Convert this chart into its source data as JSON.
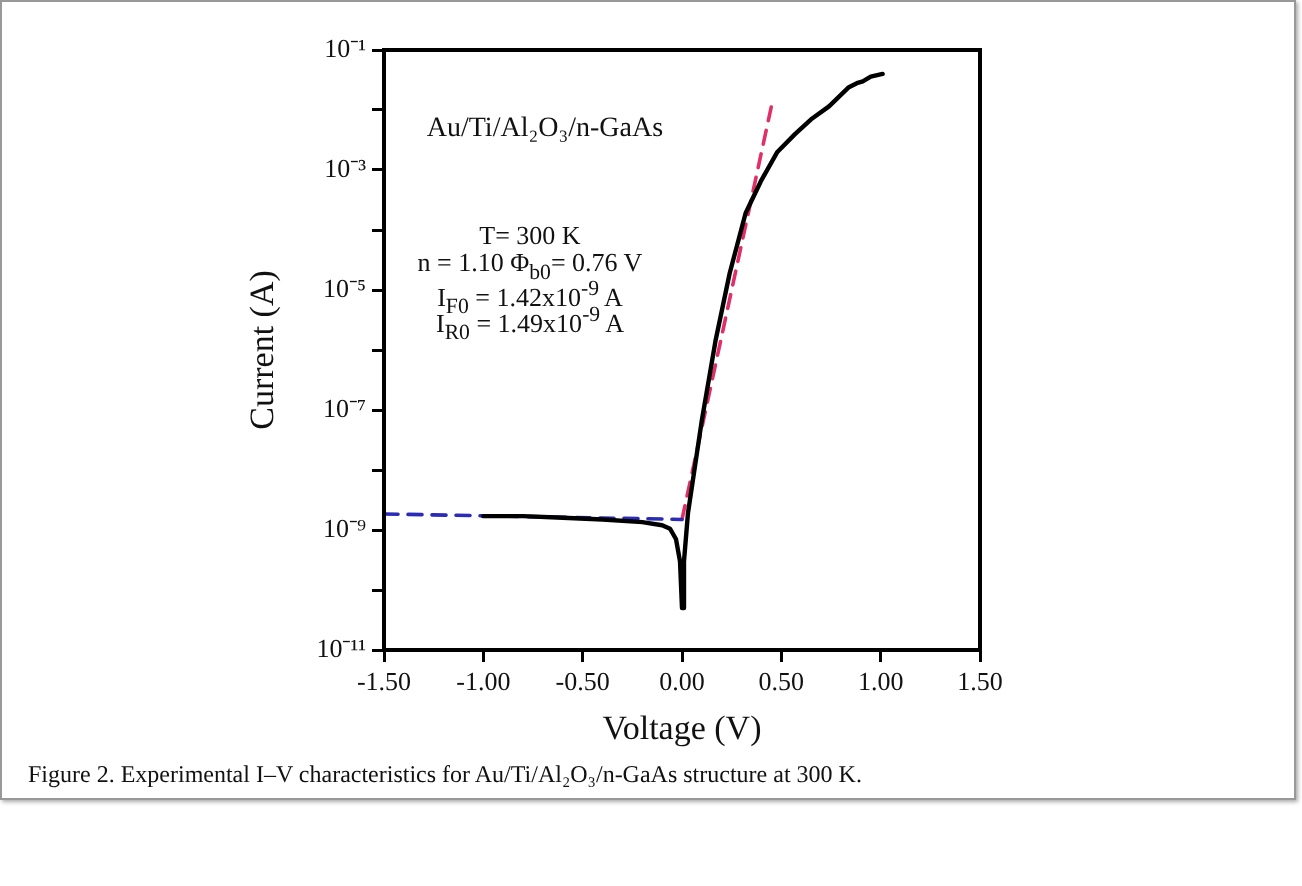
{
  "chart_data": {
    "type": "line",
    "xlabel": "Voltage (V)",
    "ylabel": "Current (A)",
    "log": "y",
    "grid": false,
    "legend": false,
    "marker": "none",
    "xlim": [
      -1.5,
      1.5
    ],
    "xticks": [
      {
        "value": -1.5,
        "label": "-1.50"
      },
      {
        "value": -1,
        "label": "-1.00"
      },
      {
        "value": -0.5,
        "label": "-0.50"
      },
      {
        "value": 0,
        "label": "0.00"
      },
      {
        "value": 0.5,
        "label": "0.50"
      },
      {
        "value": 1,
        "label": "1.00"
      },
      {
        "value": 1.5,
        "label": "1.50"
      }
    ],
    "ylim": [
      1e-11,
      0.1
    ],
    "yticks": [
      {
        "value": 1e-11,
        "label": "10⁻¹¹"
      },
      {
        "value": 1e-10,
        "label": null
      },
      {
        "value": 1e-09,
        "label": "10⁻⁹"
      },
      {
        "value": 1e-08,
        "label": null
      },
      {
        "value": 1e-07,
        "label": "10⁻⁷"
      },
      {
        "value": 1e-06,
        "label": null
      },
      {
        "value": 1e-05,
        "label": "10⁻⁵"
      },
      {
        "value": 0.0001,
        "label": null
      },
      {
        "value": 0.001,
        "label": "10⁻³"
      },
      {
        "value": 0.01,
        "label": null
      },
      {
        "value": 0.1,
        "label": "10⁻¹"
      }
    ],
    "series": [
      {
        "color": "#000000",
        "line_style": "solid",
        "x": [
          -1.0,
          -0.8,
          -0.6,
          -0.4,
          -0.2,
          -0.1,
          -0.06,
          -0.03,
          -0.01,
          0.0,
          0.01,
          0.03,
          0.1,
          0.17,
          0.24,
          0.32,
          0.4,
          0.48,
          0.57,
          0.65,
          0.74,
          0.84,
          0.88,
          0.91,
          0.95,
          1.01
        ],
        "values": [
          1.7e-09,
          1.7e-09,
          1.6e-09,
          1.5e-09,
          1.35e-09,
          1.2e-09,
          1.05e-09,
          7e-10,
          3e-10,
          5e-11,
          3e-10,
          1.9e-09,
          6.8e-08,
          1.5e-06,
          1.9e-05,
          0.00019,
          0.00068,
          0.002,
          0.004,
          0.007,
          0.0115,
          0.024,
          0.028,
          0.03,
          0.036,
          0.04
        ]
      },
      {
        "color": "#2b2bb8",
        "line_style": "dashed",
        "x": [
          -1.5,
          0.0
        ],
        "values": [
          1.85e-09,
          1.5e-09
        ]
      },
      {
        "color": "#e0306a",
        "line_style": "dashed",
        "x": [
          0.0,
          0.45
        ],
        "values": [
          1.5e-09,
          0.0115
        ]
      }
    ],
    "annotations": [
      "Au/Ti/Al₂O₃/n-GaAs",
      "T= 300 K",
      "n = 1.10  Φ$_{b0}$= 0.76 V",
      "I$_{F0}$ = 1.42x10$^{-9}$ A",
      "I$_{R0}$ = 1.49x10$^{-9}$ A",
      "Figure 2. Experimental I–V characteristics for Au/Ti/Al₂O₃/n-GaAs structure at 300 K."
    ]
  }
}
